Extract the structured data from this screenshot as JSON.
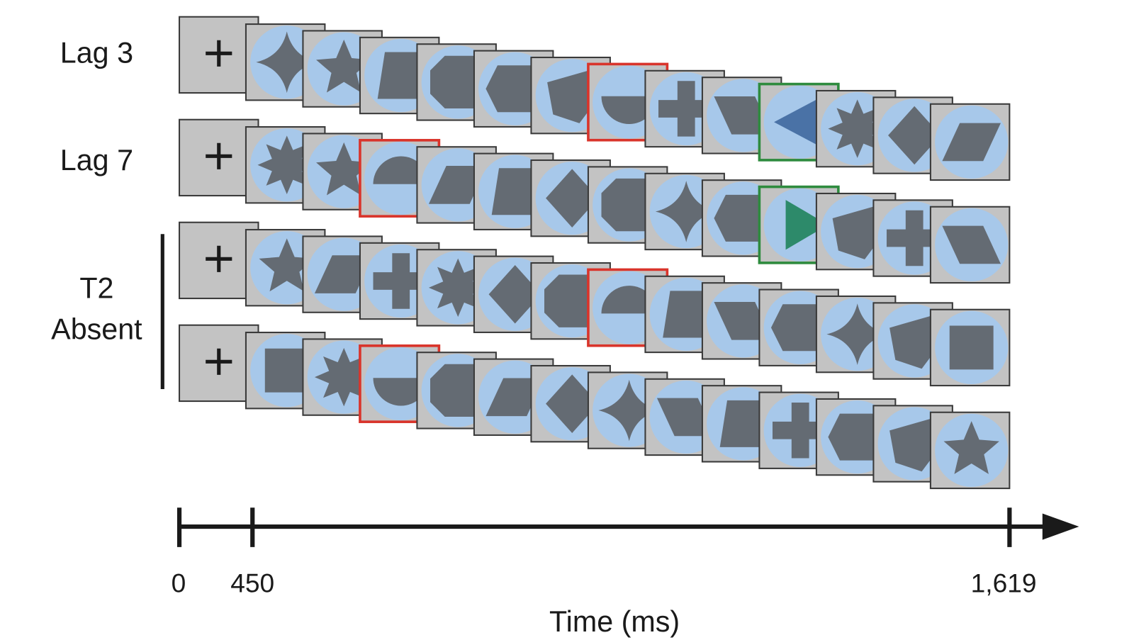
{
  "rows": [
    {
      "label": "Lag 3"
    },
    {
      "label": "Lag 7"
    },
    {
      "label": [
        "T2",
        "Absent"
      ]
    }
  ],
  "timeline": {
    "ticks": [
      "0",
      "450",
      "1,619"
    ],
    "label": "Time (ms)"
  }
}
